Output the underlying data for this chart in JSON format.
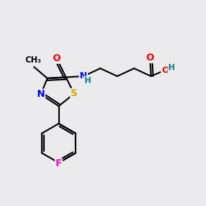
{
  "bg_color": "#ebebed",
  "bond_color": "#000000",
  "bond_width": 1.6,
  "atom_colors": {
    "O": "#ff0000",
    "N": "#0000ff",
    "S": "#ccaa00",
    "F": "#ff00cc",
    "H_nh": "#008080",
    "H_oh": "#008080"
  },
  "font_size": 9.5,
  "font_size_small": 8.5,
  "xlim": [
    0,
    10
  ],
  "ylim": [
    0,
    10
  ]
}
